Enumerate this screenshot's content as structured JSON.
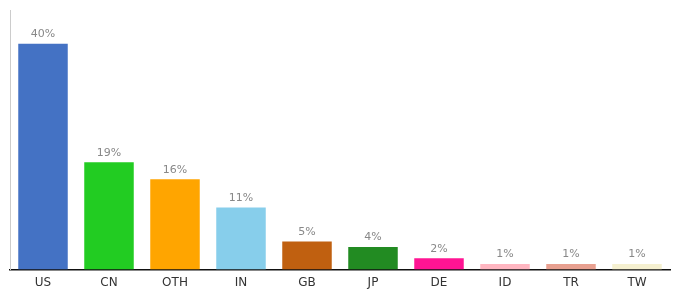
{
  "chart_data": {
    "type": "bar",
    "categories": [
      "US",
      "CN",
      "OTH",
      "IN",
      "GB",
      "JP",
      "DE",
      "ID",
      "TR",
      "TW"
    ],
    "values": [
      40,
      19,
      16,
      11,
      5,
      4,
      2,
      1,
      1,
      1
    ],
    "value_labels": [
      "40%",
      "19%",
      "16%",
      "11%",
      "5%",
      "4%",
      "2%",
      "1%",
      "1%",
      "1%"
    ],
    "colors": [
      "#4472c4",
      "#22cc22",
      "#ffa500",
      "#87ceeb",
      "#c06010",
      "#228B22",
      "#ff1493",
      "#ffb6c1",
      "#e8a090",
      "#f5f0d0"
    ],
    "ylim": [
      0,
      46
    ],
    "data_labels": true,
    "tick_labels": "x",
    "grid": false
  }
}
